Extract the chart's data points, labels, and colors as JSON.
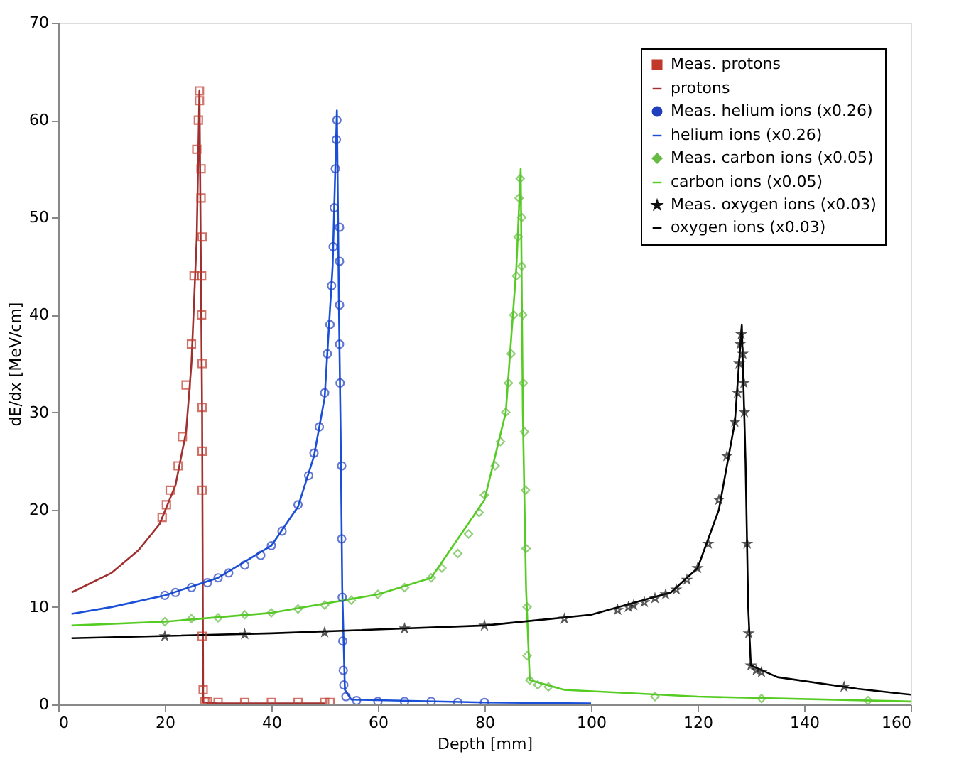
{
  "chart_data": {
    "type": "line",
    "xlabel": "Depth [mm]",
    "ylabel": "dE/dx [MeV/cm]",
    "xlim": [
      0,
      160
    ],
    "xticks": [
      0,
      20,
      40,
      60,
      80,
      100,
      120,
      140,
      160
    ],
    "ylim": [
      0,
      70
    ],
    "yticks": [
      0,
      10,
      20,
      30,
      40,
      50,
      60,
      70
    ],
    "grid": false,
    "legend": "top right",
    "line_style": "solid",
    "series": [
      {
        "name": "Meas. protons",
        "type": "scatter",
        "marker": "square",
        "color": "#c0392b",
        "x": [
          19.5,
          20.3,
          21,
          22.5,
          23.3,
          24,
          25,
          25.5,
          26,
          26.3,
          26.5,
          26.5,
          26.8,
          26.8,
          27,
          26.9,
          26.9,
          27,
          27,
          27,
          27,
          27,
          27.2,
          27.5,
          28,
          30,
          35,
          40,
          45,
          50,
          51
        ],
        "values": [
          19.2,
          20.5,
          22,
          24.5,
          27.5,
          32.8,
          37,
          44,
          57,
          60,
          62,
          63,
          55,
          52,
          48,
          44,
          40,
          35,
          30.5,
          26,
          22,
          7,
          1.5,
          0.3,
          0.3,
          0.2,
          0.2,
          0.2,
          0.2,
          0.2,
          0.2
        ]
      },
      {
        "name": "protons",
        "color": "#a03030",
        "x": [
          2.5,
          10,
          15,
          19,
          22,
          24,
          25,
          26,
          26.5,
          27,
          27.2,
          30,
          50
        ],
        "values": [
          11.5,
          13.5,
          15.8,
          18.5,
          22.5,
          28,
          35,
          48,
          63,
          30,
          0.2,
          0.1,
          0.1
        ]
      },
      {
        "name": "Meas. helium ions (x0.26)",
        "type": "scatter",
        "marker": "circle",
        "color": "#1f3fbf",
        "x": [
          20,
          22,
          25,
          28,
          30,
          32,
          35,
          38,
          40,
          42,
          45,
          47,
          48,
          49,
          50,
          50.5,
          51,
          51.3,
          51.6,
          51.8,
          52,
          52.2,
          52.3,
          52.8,
          52.8,
          52.8,
          52.8,
          52.9,
          53.2,
          53.2,
          53.3,
          53.4,
          53.5,
          53.6,
          54,
          56,
          60,
          65,
          70,
          75,
          80
        ],
        "values": [
          11.2,
          11.5,
          12,
          12.5,
          13,
          13.5,
          14.3,
          15.3,
          16.3,
          17.8,
          20.5,
          23.5,
          25.8,
          28.5,
          32,
          36,
          39,
          43,
          47,
          51,
          55,
          58,
          60,
          49,
          45.5,
          41,
          37,
          33,
          24.5,
          17,
          11,
          6.5,
          3.5,
          2,
          0.8,
          0.4,
          0.3,
          0.3,
          0.3,
          0.2,
          0.2
        ]
      },
      {
        "name": "helium ions (x0.26)",
        "color": "#1a4fd8",
        "x": [
          2.5,
          10,
          20,
          30,
          40,
          45,
          48,
          50,
          51.5,
          52.3,
          52.7,
          53,
          53.3,
          53.8,
          55,
          80,
          100
        ],
        "values": [
          9.3,
          10,
          11.2,
          13,
          16.3,
          20.3,
          25.5,
          31.5,
          45,
          61,
          40,
          28,
          12,
          1.5,
          0.5,
          0.2,
          0.1
        ]
      },
      {
        "name": "Meas. carbon ions (x0.05)",
        "type": "scatter",
        "marker": "diamond",
        "color": "#66bb44",
        "x": [
          20,
          25,
          30,
          35,
          40,
          45,
          50,
          55,
          60,
          65,
          70,
          72,
          75,
          77,
          79,
          80,
          82,
          83,
          84,
          84.5,
          85,
          85.5,
          86,
          86.3,
          86.5,
          86.7,
          87,
          87,
          87.2,
          87.3,
          87.5,
          87.7,
          87.8,
          88,
          88,
          88.5,
          90,
          92,
          112,
          132,
          152
        ],
        "values": [
          8.5,
          8.8,
          8.9,
          9.2,
          9.4,
          9.8,
          10.2,
          10.7,
          11.3,
          12,
          13,
          14,
          15.5,
          17.5,
          19.7,
          21.5,
          24.5,
          27,
          30,
          33,
          36,
          40,
          44,
          48,
          52,
          54,
          50,
          45,
          40,
          33,
          28,
          22,
          16,
          10,
          5,
          2.5,
          2,
          1.8,
          0.8,
          0.6,
          0.4
        ]
      },
      {
        "name": "carbon ions (x0.05)",
        "color": "#55cc22",
        "x": [
          2.5,
          20,
          40,
          60,
          70,
          80,
          84,
          86,
          86.8,
          87.2,
          87.8,
          88.5,
          95,
          120,
          160
        ],
        "values": [
          8.1,
          8.5,
          9.4,
          11.3,
          13,
          21,
          30,
          45,
          55,
          30,
          12,
          2.5,
          1.5,
          0.8,
          0.3
        ]
      },
      {
        "name": "Meas. oxygen ions (x0.03)",
        "type": "scatter",
        "marker": "star",
        "color": "#111111",
        "x": [
          20,
          35,
          50,
          65,
          80,
          95,
          105,
          107,
          108,
          110,
          112,
          114,
          116,
          118,
          120,
          122,
          124,
          125.5,
          127,
          127.5,
          127.8,
          128,
          128.2,
          128.5,
          128.7,
          128.8,
          129.3,
          129.6,
          130,
          131,
          132,
          147.5
        ],
        "values": [
          7,
          7.2,
          7.4,
          7.8,
          8.1,
          8.8,
          9.7,
          10,
          10.2,
          10.5,
          10.9,
          11.3,
          11.8,
          12.8,
          14,
          16.5,
          21,
          25.5,
          29,
          32,
          35,
          37,
          38,
          36,
          33,
          30,
          16.5,
          7.3,
          4,
          3.5,
          3.3,
          1.8
        ]
      },
      {
        "name": "oxygen ions (x0.03)",
        "color": "#000000",
        "x": [
          2.5,
          40,
          80,
          100,
          115,
          120,
          124,
          127,
          128.3,
          129,
          129.5,
          130,
          135,
          150,
          160
        ],
        "values": [
          6.8,
          7.3,
          8.1,
          9.2,
          11.5,
          14,
          20,
          29,
          39,
          25,
          10,
          4,
          2.8,
          1.6,
          1
        ]
      }
    ]
  }
}
